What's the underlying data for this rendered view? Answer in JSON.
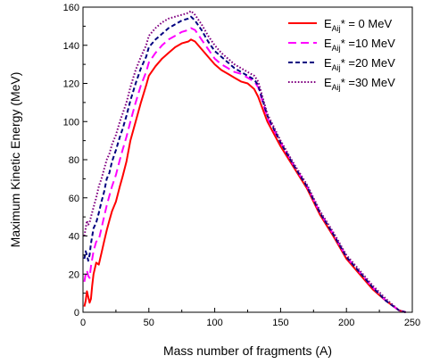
{
  "chart_data": {
    "type": "line",
    "title": "",
    "xlabel": "Mass number of fragments (A)",
    "ylabel": "Maximum Kinetic Energy (MeV)",
    "xlim": [
      0,
      250
    ],
    "ylim": [
      0,
      160
    ],
    "xticks": [
      "0",
      "50",
      "100",
      "150",
      "200",
      "250"
    ],
    "yticks": [
      "0",
      "20",
      "40",
      "60",
      "80",
      "100",
      "120",
      "140",
      "160"
    ],
    "grid": false,
    "legend_position": "top-right",
    "series": [
      {
        "name": "E_Aij* = 0 MeV",
        "legend": {
          "prefix": "E",
          "sub": "Aij",
          "suffix": "* = 0 MeV"
        },
        "color": "#ff0000",
        "style": "solid",
        "x": [
          1,
          2,
          3,
          4,
          5,
          6,
          7,
          8,
          10,
          12,
          14,
          16,
          18,
          20,
          22,
          25,
          28,
          30,
          33,
          36,
          40,
          44,
          48,
          50,
          55,
          60,
          65,
          70,
          75,
          80,
          82,
          85,
          90,
          95,
          100,
          105,
          110,
          115,
          120,
          125,
          130,
          133,
          140,
          150,
          160,
          170,
          180,
          190,
          200,
          210,
          220,
          230,
          240,
          245
        ],
        "y": [
          3,
          6,
          11,
          8,
          5,
          7,
          14,
          20,
          26,
          25,
          31,
          37,
          43,
          48,
          53,
          58,
          66,
          71,
          79,
          90,
          100,
          110,
          119,
          124,
          129,
          133,
          136,
          139,
          141,
          142,
          143,
          142,
          138,
          134,
          130,
          127,
          125,
          123,
          121,
          120,
          117,
          113,
          100,
          87,
          76,
          65,
          51,
          40,
          28,
          20,
          12,
          6,
          1,
          0
        ]
      },
      {
        "name": "E_Aij* =10 MeV",
        "legend": {
          "prefix": "E",
          "sub": "Aij",
          "suffix": "* =10 MeV"
        },
        "color": "#ff00ff",
        "style": "dashed",
        "x": [
          1,
          2,
          3,
          4,
          5,
          6,
          8,
          10,
          12,
          14,
          16,
          18,
          20,
          22,
          25,
          28,
          30,
          33,
          36,
          40,
          44,
          48,
          50,
          55,
          60,
          65,
          70,
          75,
          80,
          82,
          85,
          90,
          95,
          100,
          105,
          110,
          115,
          120,
          125,
          130,
          133,
          140,
          150,
          160,
          170,
          180,
          190,
          200,
          210,
          220,
          230,
          240,
          245
        ],
        "y": [
          16,
          20,
          22,
          19,
          18,
          24,
          32,
          37,
          38,
          44,
          50,
          56,
          61,
          66,
          72,
          80,
          85,
          92,
          100,
          110,
          119,
          126,
          131,
          136,
          140,
          143,
          145,
          147,
          148,
          149,
          148,
          143,
          138,
          133,
          130,
          128,
          126,
          125,
          123,
          121,
          118,
          102,
          89,
          77,
          66,
          52,
          41,
          29,
          21,
          13,
          6,
          1,
          0
        ]
      },
      {
        "name": "E_Aij* =20 MeV",
        "legend": {
          "prefix": "E",
          "sub": "Aij",
          "suffix": "* =20 MeV"
        },
        "color": "#000080",
        "style": "short-dash",
        "x": [
          1,
          2,
          3,
          4,
          5,
          6,
          8,
          10,
          12,
          14,
          16,
          18,
          20,
          22,
          25,
          28,
          30,
          33,
          36,
          40,
          44,
          48,
          50,
          55,
          60,
          65,
          70,
          75,
          80,
          82,
          85,
          90,
          95,
          100,
          105,
          110,
          115,
          120,
          125,
          130,
          133,
          140,
          150,
          160,
          170,
          180,
          190,
          200,
          210,
          220,
          230,
          240,
          245
        ],
        "y": [
          28,
          32,
          30,
          27,
          30,
          36,
          44,
          47,
          52,
          58,
          63,
          70,
          73,
          79,
          85,
          92,
          96,
          103,
          111,
          120,
          128,
          134,
          139,
          143,
          146,
          149,
          151,
          153,
          154,
          155,
          153,
          148,
          142,
          137,
          134,
          131,
          128,
          126,
          124,
          122,
          119,
          103,
          89,
          77,
          66,
          52,
          41,
          29,
          21,
          13,
          6,
          1,
          0
        ]
      },
      {
        "name": "E_Aij* =30 MeV",
        "legend": {
          "prefix": "E",
          "sub": "Aij",
          "suffix": "* =30 MeV"
        },
        "color": "#800080",
        "style": "dotted",
        "x": [
          1,
          2,
          3,
          4,
          5,
          6,
          8,
          10,
          12,
          14,
          16,
          18,
          20,
          22,
          25,
          28,
          30,
          33,
          36,
          40,
          44,
          48,
          50,
          55,
          60,
          65,
          70,
          75,
          80,
          82,
          85,
          90,
          95,
          100,
          105,
          110,
          115,
          120,
          125,
          130,
          133,
          140,
          150,
          160,
          170,
          180,
          190,
          200,
          210,
          220,
          230,
          240,
          245
        ],
        "y": [
          40,
          44,
          48,
          46,
          47,
          50,
          55,
          60,
          66,
          70,
          75,
          80,
          83,
          88,
          93,
          100,
          104,
          110,
          118,
          127,
          134,
          140,
          145,
          149,
          152,
          154,
          155,
          156,
          157,
          158,
          156,
          151,
          145,
          140,
          136,
          133,
          130,
          128,
          126,
          124,
          121,
          104,
          90,
          78,
          67,
          53,
          42,
          30,
          22,
          14,
          7,
          1,
          0
        ]
      }
    ]
  }
}
